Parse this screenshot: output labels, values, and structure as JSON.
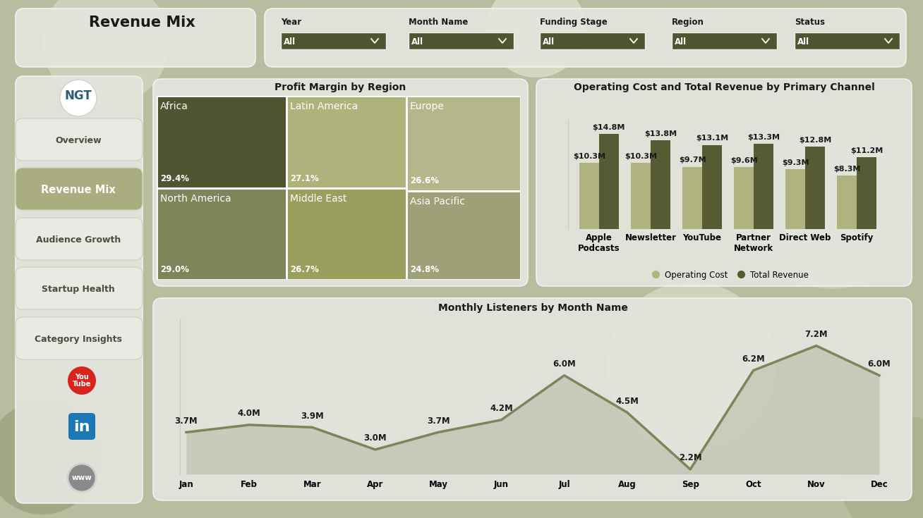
{
  "header": {
    "title": "Revenue Mix"
  },
  "filters": [
    {
      "label": "Year",
      "value": "All"
    },
    {
      "label": "Month Name",
      "value": "All"
    },
    {
      "label": "Funding Stage",
      "value": "All"
    },
    {
      "label": "Region",
      "value": "All"
    },
    {
      "label": "Status",
      "value": "All"
    }
  ],
  "navigation": {
    "logo": "NGT",
    "items": [
      "Overview",
      "Revenue Mix",
      "Audience Growth",
      "Startup Health",
      "Category Insights"
    ],
    "active": "Revenue Mix",
    "icons": [
      "You Tube",
      "in",
      "www"
    ]
  },
  "chart_data": [
    {
      "type": "treemap",
      "title": "Profit Margin by Region",
      "categories": [
        "Africa",
        "North America",
        "Latin America",
        "Middle East",
        "Europe",
        "Asia Pacific"
      ],
      "values": [
        29.4,
        29.0,
        27.1,
        26.7,
        26.6,
        24.8
      ],
      "value_labels": [
        "29.4%",
        "29.0%",
        "27.1%",
        "26.7%",
        "26.6%",
        "24.8%"
      ],
      "colors": [
        "#4f5530",
        "#7f845b",
        "#b0b27c",
        "#9a9f5e",
        "#b5b78b",
        "#9ea077"
      ],
      "data_labels": true,
      "tick_labels": false
    },
    {
      "type": "bar",
      "title": "Operating Cost and Total Revenue by Primary Channel",
      "categories": [
        "Apple Podcasts",
        "Newsletter",
        "YouTube",
        "Partner Network",
        "Direct Web",
        "Spotify"
      ],
      "series": [
        {
          "name": "Operating Cost",
          "color": "#b0b27f",
          "values": [
            10300000,
            10300000,
            9700000,
            9600000,
            9300000,
            8300000
          ],
          "value_labels": [
            "$10.3M",
            "$10.3M",
            "$9.7M",
            "$9.6M",
            "$9.3M",
            "$8.3M"
          ]
        },
        {
          "name": "Total Revenue",
          "color": "#575b33",
          "values": [
            14800000,
            13800000,
            13100000,
            13300000,
            12800000,
            11200000
          ],
          "value_labels": [
            "$14.8M",
            "$13.8M",
            "$13.1M",
            "$13.3M",
            "$12.8M",
            "$11.2M"
          ]
        }
      ],
      "ylim": [
        0,
        17000000
      ],
      "yticks": [],
      "data_labels": true,
      "legend": "lower center",
      "tick_labels": "x"
    },
    {
      "type": "area",
      "title": "Monthly Listeners by Month Name",
      "categories": [
        "Jan",
        "Feb",
        "Mar",
        "Apr",
        "May",
        "Jun",
        "Jul",
        "Aug",
        "Sep",
        "Oct",
        "Nov",
        "Dec"
      ],
      "values": [
        3700000,
        4000000,
        3900000,
        3000000,
        3700000,
        4200000,
        6000000,
        4500000,
        2200000,
        6200000,
        7200000,
        6000000
      ],
      "value_labels": [
        "3.7M",
        "4.0M",
        "3.9M",
        "3.0M",
        "3.7M",
        "4.2M",
        "6.0M",
        "4.5M",
        "2.2M",
        "6.2M",
        "7.2M",
        "6.0M"
      ],
      "color": "#7f845b",
      "ylim": [
        2000000,
        8300000
      ],
      "yticks": [],
      "data_labels": true,
      "tick_labels": "x"
    }
  ]
}
